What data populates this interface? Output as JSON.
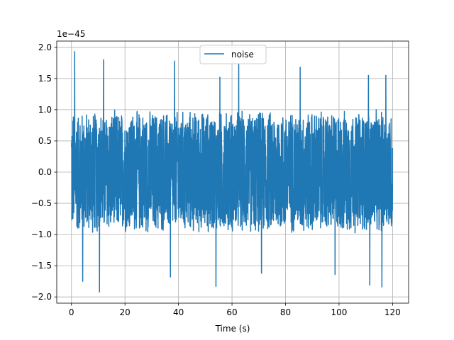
{
  "chart_data": {
    "type": "line",
    "title": "",
    "xlabel": "Time (s)",
    "ylabel": "",
    "y_offset_label": "1e−45",
    "xlim": [
      -5.5,
      126
    ],
    "ylim": [
      -2.1,
      2.1
    ],
    "x_ticks": [
      0,
      20,
      40,
      60,
      80,
      100,
      120
    ],
    "x_tick_labels": [
      "0",
      "20",
      "40",
      "60",
      "80",
      "100",
      "120"
    ],
    "y_ticks": [
      -2.0,
      -1.5,
      -1.0,
      -0.5,
      0.0,
      0.5,
      1.0,
      1.5,
      2.0
    ],
    "y_tick_labels": [
      "−2.0",
      "−1.5",
      "−1.0",
      "−0.5",
      "0.0",
      "0.5",
      "1.0",
      "1.5",
      "2.0"
    ],
    "grid": true,
    "legend": {
      "placement": "top-center",
      "entries": [
        "noise"
      ]
    },
    "series": [
      {
        "name": "noise",
        "color": "#1f77b4",
        "x_range": [
          0,
          120
        ],
        "typical_amplitude": 0.85,
        "max_value": 1.93,
        "min_value": -1.92,
        "peaks": [
          {
            "x": 1.2,
            "y": 1.93
          },
          {
            "x": 10.5,
            "y": -1.92
          },
          {
            "x": 4.2,
            "y": -1.75
          },
          {
            "x": 12.0,
            "y": 1.8
          },
          {
            "x": 38.5,
            "y": 1.78
          },
          {
            "x": 37.0,
            "y": -1.68
          },
          {
            "x": 54.0,
            "y": -1.83
          },
          {
            "x": 55.5,
            "y": 1.52
          },
          {
            "x": 62.5,
            "y": 1.73
          },
          {
            "x": 71.0,
            "y": -1.62
          },
          {
            "x": 85.5,
            "y": 1.68
          },
          {
            "x": 98.5,
            "y": -1.64
          },
          {
            "x": 111.0,
            "y": 1.55
          },
          {
            "x": 111.5,
            "y": -1.81
          },
          {
            "x": 117.5,
            "y": 1.55
          },
          {
            "x": 116.0,
            "y": -1.84
          }
        ]
      }
    ]
  }
}
